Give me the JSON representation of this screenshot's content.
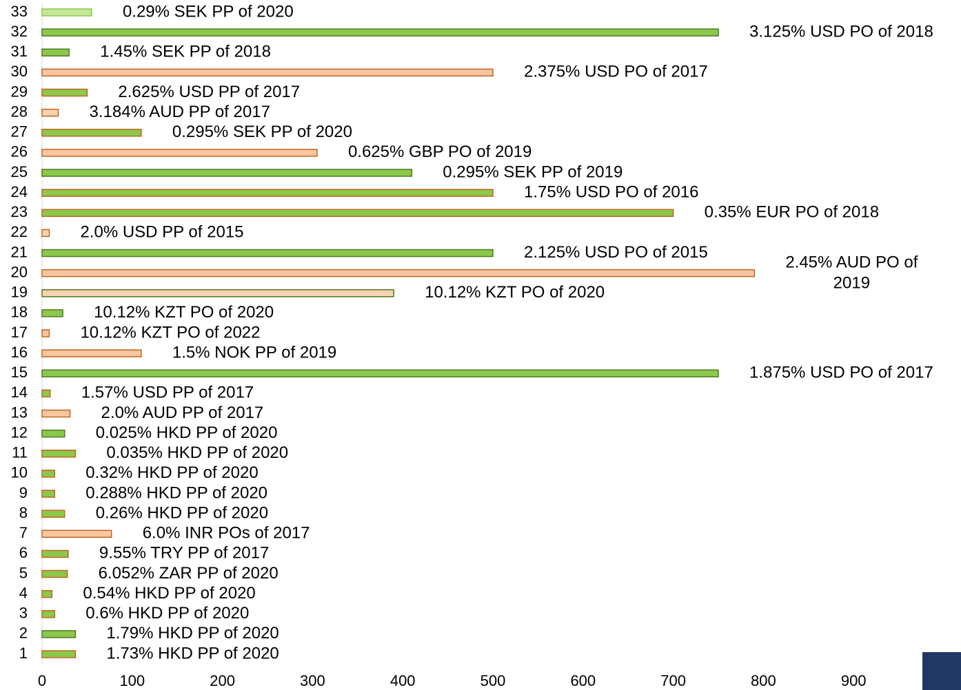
{
  "chart_data": {
    "type": "barh",
    "categories": [
      "1",
      "2",
      "3",
      "4",
      "5",
      "6",
      "7",
      "8",
      "9",
      "10",
      "11",
      "12",
      "13",
      "14",
      "15",
      "16",
      "17",
      "18",
      "19",
      "20",
      "21",
      "22",
      "23",
      "24",
      "25",
      "26",
      "27",
      "28",
      "29",
      "30",
      "31",
      "32",
      "33"
    ],
    "values": [
      37,
      37,
      14,
      11,
      28,
      29,
      77,
      25,
      14,
      14,
      37,
      25,
      31,
      9,
      750,
      110,
      8,
      23,
      390,
      790,
      500,
      8,
      700,
      500,
      410,
      305,
      110,
      18,
      50,
      500,
      30,
      750,
      55
    ],
    "value_labels": [
      "1.73% HKD PP of 2020",
      "1.79% HKD PP of 2020",
      "0.6% HKD PP of 2020",
      "0.54% HKD PP of 2020",
      "6.052% ZAR PP of 2020",
      "9.55% TRY PP of 2017",
      "6.0% INR POs of 2017",
      "0.26% HKD PP of 2020",
      "0.288% HKD PP of 2020",
      "0.32% HKD PP of 2020",
      "0.035% HKD PP of 2020",
      "0.025% HKD PP of 2020",
      "2.0% AUD PP of 2017",
      "1.57% USD PP of 2017",
      "1.875% USD PO of 2017",
      "1.5% NOK PP of 2019",
      "10.12% KZT PO of 2022",
      "10.12% KZT PO of 2020",
      "10.12% KZT PO of 2020",
      "2.45% AUD PO of 2019",
      "2.125% USD PO of 2015",
      "2.0% USD PP of 2015",
      "0.35% EUR PO of 2018",
      "1.75% USD PO of 2016",
      "0.295% SEK PP of 2019",
      "0.625% GBP PO of 2019",
      "0.295% SEK PP of 2020",
      "3.184% AUD PP of 2017",
      "2.625% USD PP of 2017",
      "2.375% USD PO of 2017",
      "1.45% SEK PP of 2018",
      "3.125% USD PO of 2018",
      "0.29% SEK PP of 2020"
    ],
    "colors": [
      "#8cc84b",
      "#8cc84b",
      "#8cc84b",
      "#8cc84b",
      "#8cc84b",
      "#8cc84b",
      "#f8c6a0",
      "#8cc84b",
      "#8cc84b",
      "#8cc84b",
      "#8cc84b",
      "#8cc84b",
      "#f8c6a0",
      "#8cc84b",
      "#8cc84b",
      "#f8c6a0",
      "#f8c6a0",
      "#8cc84b",
      "#f8d3b0",
      "#f8c6a0",
      "#8cc84b",
      "#f8d3b0",
      "#8cc84b",
      "#8cc84b",
      "#8cc84b",
      "#f8c6a0",
      "#8cc84b",
      "#f8d3b0",
      "#8cc84b",
      "#f8c6a0",
      "#8cc84b",
      "#8cc84b",
      "#c6e59a"
    ],
    "edgecolors": [
      "#c0661f",
      "#4e7a22",
      "#c0661f",
      "#c0661f",
      "#c0661f",
      "#c0661f",
      "#c0661f",
      "#c0661f",
      "#c0661f",
      "#c0661f",
      "#c0661f",
      "#4e7a22",
      "#c0661f",
      "#c0661f",
      "#4e7a22",
      "#c0661f",
      "#c0661f",
      "#4e7a22",
      "#4e7a22",
      "#c0661f",
      "#4e7a22",
      "#c0661f",
      "#c0661f",
      "#c0661f",
      "#4e7a22",
      "#c0661f",
      "#c0661f",
      "#c0661f",
      "#c0661f",
      "#c0661f",
      "#4e7a22",
      "#4e7a22",
      "#8cc84b"
    ],
    "xlim": [
      0,
      1000
    ],
    "xticks": [
      0,
      100,
      200,
      300,
      400,
      500,
      600,
      700,
      800,
      900
    ],
    "grid": false
  }
}
